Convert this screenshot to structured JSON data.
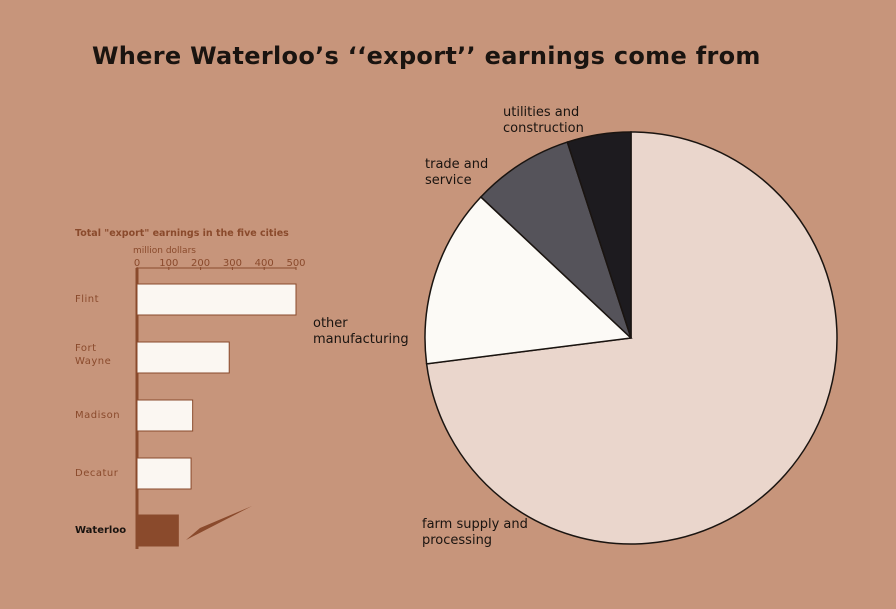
{
  "title": "Where Waterloo’s ‘‘export’’ earnings come from",
  "chart_data": [
    {
      "type": "bar",
      "orientation": "horizontal",
      "title": "Total \"export\" earnings in the five cities",
      "xlabel": "million dollars",
      "categories": [
        "Flint",
        "Fort Wayne",
        "Madison",
        "Decatur",
        "Waterloo"
      ],
      "values": [
        500,
        290,
        175,
        170,
        130
      ],
      "colors": [
        "#fbf7f2",
        "#fbf7f2",
        "#fbf7f2",
        "#fbf7f2",
        "#8a4a2c"
      ],
      "xlim": [
        0,
        500
      ],
      "xticks": [
        0,
        100,
        200,
        300,
        400,
        500
      ]
    },
    {
      "type": "pie",
      "categories": [
        "farm supply and processing",
        "other manufacturing",
        "trade and service",
        "utilities and construction"
      ],
      "values": [
        73,
        14,
        8,
        5
      ],
      "colors": [
        "#ead6cc",
        "#fcfaf6",
        "#55535a",
        "#1d1b1f"
      ]
    }
  ]
}
